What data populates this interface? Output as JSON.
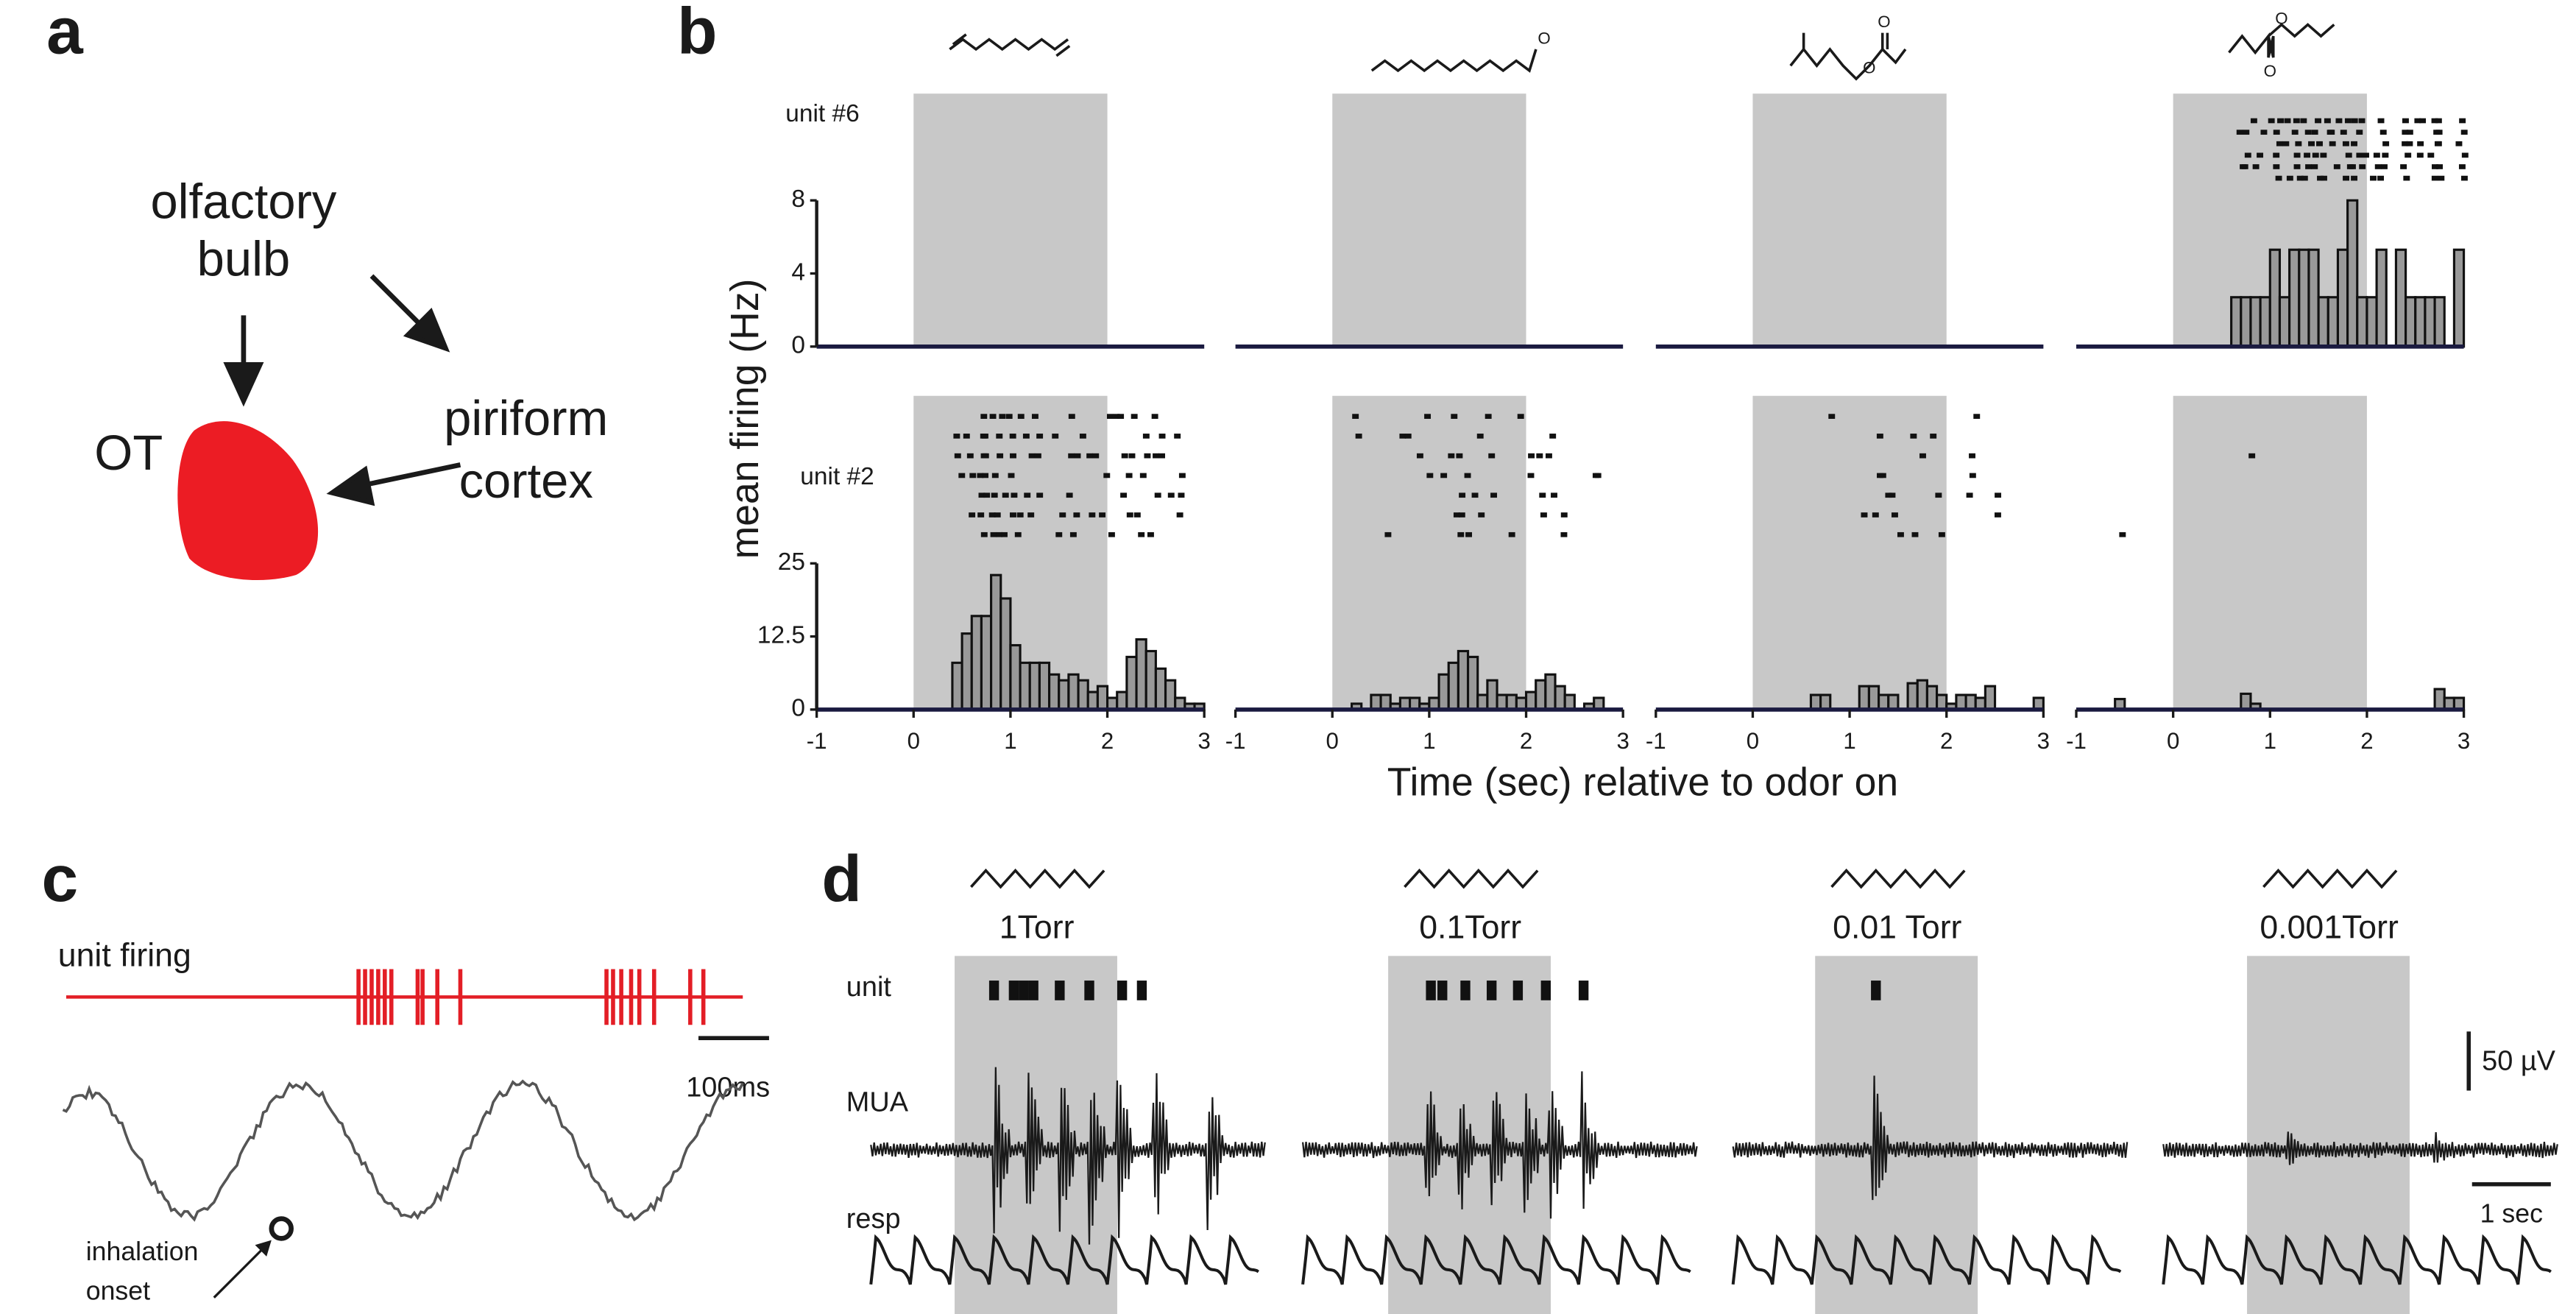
{
  "panel_a": {
    "label": "a",
    "olfactory_bulb": [
      "olfactory",
      "bulb"
    ],
    "piriform_cortex": [
      "piriform",
      "cortex"
    ],
    "ot": "OT"
  },
  "panel_b": {
    "label": "b",
    "ylabel": "mean firing (Hz)",
    "xlabel": "Time (sec) relative to odor on",
    "atom": "O"
  },
  "chart_data": [
    {
      "type": "histogram",
      "unit": "unit #6",
      "color": "#999999",
      "shaded": [
        0,
        2
      ],
      "xlim": [
        -1,
        3
      ],
      "ylim": [
        0,
        8
      ],
      "yticks": [
        0,
        4,
        8
      ],
      "bins": [
        -1,
        -0.9,
        -0.8,
        -0.7,
        -0.6,
        -0.5,
        -0.4,
        -0.3,
        -0.2,
        -0.1,
        0,
        0.1,
        0.2,
        0.3,
        0.4,
        0.5,
        0.6,
        0.7,
        0.8,
        0.9,
        1,
        1.1,
        1.2,
        1.3,
        1.4,
        1.5,
        1.6,
        1.7,
        1.8,
        1.9,
        2,
        2.1,
        2.2,
        2.3,
        2.4,
        2.5,
        2.6,
        2.7,
        2.8,
        2.9,
        3
      ],
      "values": [
        0,
        0,
        0,
        0,
        0,
        0,
        0,
        0,
        0,
        0,
        0,
        0,
        0,
        0,
        0,
        0,
        0,
        0,
        0,
        0,
        0,
        0,
        0,
        0,
        0,
        0,
        0,
        0,
        0,
        0,
        0,
        0,
        0,
        0,
        0,
        0,
        0,
        0,
        0,
        0
      ]
    },
    {
      "type": "histogram",
      "color": "#999999",
      "shaded": [
        0,
        2
      ],
      "xlim": [
        -1,
        3
      ],
      "ylim": [
        0,
        8
      ],
      "bins": [
        -1,
        -0.9,
        -0.8,
        -0.7,
        -0.6,
        -0.5,
        -0.4,
        -0.3,
        -0.2,
        -0.1,
        0,
        0.1,
        0.2,
        0.3,
        0.4,
        0.5,
        0.6,
        0.7,
        0.8,
        0.9,
        1,
        1.1,
        1.2,
        1.3,
        1.4,
        1.5,
        1.6,
        1.7,
        1.8,
        1.9,
        2,
        2.1,
        2.2,
        2.3,
        2.4,
        2.5,
        2.6,
        2.7,
        2.8,
        2.9,
        3
      ],
      "values": [
        0,
        0,
        0,
        0,
        0,
        0,
        0,
        0,
        0,
        0,
        0,
        0,
        0,
        0,
        0,
        0,
        0,
        0,
        0,
        0,
        0,
        0,
        0,
        0,
        0,
        0,
        0,
        0,
        0,
        0,
        0,
        0,
        0,
        0,
        0,
        0,
        0,
        0,
        0,
        0
      ]
    },
    {
      "type": "histogram",
      "color": "#999999",
      "shaded": [
        0,
        2
      ],
      "xlim": [
        -1,
        3
      ],
      "ylim": [
        0,
        8
      ],
      "bins": [
        -1,
        -0.9,
        -0.8,
        -0.7,
        -0.6,
        -0.5,
        -0.4,
        -0.3,
        -0.2,
        -0.1,
        0,
        0.1,
        0.2,
        0.3,
        0.4,
        0.5,
        0.6,
        0.7,
        0.8,
        0.9,
        1,
        1.1,
        1.2,
        1.3,
        1.4,
        1.5,
        1.6,
        1.7,
        1.8,
        1.9,
        2,
        2.1,
        2.2,
        2.3,
        2.4,
        2.5,
        2.6,
        2.7,
        2.8,
        2.9,
        3
      ],
      "values": [
        0,
        0,
        0,
        0,
        0,
        0,
        0,
        0,
        0,
        0,
        0,
        0,
        0,
        0,
        0,
        0,
        0,
        0,
        0,
        0,
        0,
        0,
        0,
        0,
        0,
        0,
        0,
        0,
        0,
        0,
        0,
        0,
        0,
        0,
        0,
        0,
        0,
        0,
        0,
        0
      ]
    },
    {
      "type": "histogram",
      "color": "#999999",
      "shaded": [
        0,
        2
      ],
      "xlim": [
        -1,
        3
      ],
      "ylim": [
        0,
        8
      ],
      "bins": [
        -1,
        -0.9,
        -0.8,
        -0.7,
        -0.6,
        -0.5,
        -0.4,
        -0.3,
        -0.2,
        -0.1,
        0,
        0.1,
        0.2,
        0.3,
        0.4,
        0.5,
        0.6,
        0.7,
        0.8,
        0.9,
        1,
        1.1,
        1.2,
        1.3,
        1.4,
        1.5,
        1.6,
        1.7,
        1.8,
        1.9,
        2,
        2.1,
        2.2,
        2.3,
        2.4,
        2.5,
        2.6,
        2.7,
        2.8,
        2.9,
        3
      ],
      "values": [
        0,
        0,
        0,
        0,
        0,
        0,
        0,
        0,
        0,
        0,
        0,
        0,
        0,
        0,
        0,
        0,
        2.7,
        2.7,
        2.7,
        2.7,
        5.3,
        2.7,
        5.3,
        5.3,
        5.3,
        2.7,
        2.7,
        5.3,
        8,
        2.7,
        2.7,
        5.3,
        0,
        5.3,
        2.7,
        2.7,
        2.7,
        2.7,
        0,
        5.3
      ]
    },
    {
      "type": "histogram",
      "unit": "unit #2",
      "color": "#999999",
      "shaded": [
        0,
        2
      ],
      "xlim": [
        -1,
        3
      ],
      "ylim": [
        0,
        25
      ],
      "yticks": [
        0,
        12.5,
        25
      ],
      "xticks": [
        -1,
        0,
        1,
        2,
        3
      ],
      "bins": [
        -1,
        -0.9,
        -0.8,
        -0.7,
        -0.6,
        -0.5,
        -0.4,
        -0.3,
        -0.2,
        -0.1,
        0,
        0.1,
        0.2,
        0.3,
        0.4,
        0.5,
        0.6,
        0.7,
        0.8,
        0.9,
        1,
        1.1,
        1.2,
        1.3,
        1.4,
        1.5,
        1.6,
        1.7,
        1.8,
        1.9,
        2,
        2.1,
        2.2,
        2.3,
        2.4,
        2.5,
        2.6,
        2.7,
        2.8,
        2.9,
        3
      ],
      "values": [
        0,
        0,
        0,
        0,
        0,
        0,
        0,
        0,
        0,
        0,
        0,
        0,
        0,
        0,
        8,
        13,
        16,
        16,
        23,
        19,
        11,
        8,
        8,
        8,
        6,
        5,
        6,
        5,
        3,
        4,
        2,
        3,
        9,
        12,
        10,
        7,
        5,
        2,
        1,
        1
      ]
    },
    {
      "type": "histogram",
      "color": "#999999",
      "shaded": [
        0,
        2
      ],
      "xlim": [
        -1,
        3
      ],
      "ylim": [
        0,
        25
      ],
      "xticks": [
        -1,
        0,
        1,
        2,
        3
      ],
      "bins": [
        -1,
        -0.9,
        -0.8,
        -0.7,
        -0.6,
        -0.5,
        -0.4,
        -0.3,
        -0.2,
        -0.1,
        0,
        0.1,
        0.2,
        0.3,
        0.4,
        0.5,
        0.6,
        0.7,
        0.8,
        0.9,
        1,
        1.1,
        1.2,
        1.3,
        1.4,
        1.5,
        1.6,
        1.7,
        1.8,
        1.9,
        2,
        2.1,
        2.2,
        2.3,
        2.4,
        2.5,
        2.6,
        2.7,
        2.8,
        2.9,
        3
      ],
      "values": [
        0,
        0,
        0,
        0,
        0,
        0,
        0,
        0,
        0,
        0,
        0,
        0,
        1,
        0,
        2.5,
        2.5,
        1,
        2,
        2,
        1,
        2,
        6,
        8,
        10,
        9,
        2.5,
        5,
        2.5,
        2.5,
        2,
        3,
        5,
        6,
        4,
        2.5,
        0,
        1,
        2,
        0,
        0
      ]
    },
    {
      "type": "histogram",
      "color": "#999999",
      "shaded": [
        0,
        2
      ],
      "xlim": [
        -1,
        3
      ],
      "ylim": [
        0,
        25
      ],
      "xticks": [
        -1,
        0,
        1,
        2,
        3
      ],
      "bins": [
        -1,
        -0.9,
        -0.8,
        -0.7,
        -0.6,
        -0.5,
        -0.4,
        -0.3,
        -0.2,
        -0.1,
        0,
        0.1,
        0.2,
        0.3,
        0.4,
        0.5,
        0.6,
        0.7,
        0.8,
        0.9,
        1,
        1.1,
        1.2,
        1.3,
        1.4,
        1.5,
        1.6,
        1.7,
        1.8,
        1.9,
        2,
        2.1,
        2.2,
        2.3,
        2.4,
        2.5,
        2.6,
        2.7,
        2.8,
        2.9,
        3
      ],
      "values": [
        0,
        0,
        0,
        0,
        0,
        0,
        0,
        0,
        0,
        0,
        0,
        0,
        0,
        0,
        0,
        0,
        2.5,
        2.5,
        0,
        0,
        0,
        4,
        4,
        2.5,
        2.5,
        0,
        4.5,
        5,
        4,
        2.5,
        1,
        2.5,
        2.5,
        2,
        4,
        0,
        0,
        0,
        0,
        2
      ]
    },
    {
      "type": "histogram",
      "color": "#999999",
      "shaded": [
        0,
        2
      ],
      "xlim": [
        -1,
        3
      ],
      "ylim": [
        0,
        25
      ],
      "xticks": [
        -1,
        0,
        1,
        2,
        3
      ],
      "bins": [
        -1,
        -0.9,
        -0.8,
        -0.7,
        -0.6,
        -0.5,
        -0.4,
        -0.3,
        -0.2,
        -0.1,
        0,
        0.1,
        0.2,
        0.3,
        0.4,
        0.5,
        0.6,
        0.7,
        0.8,
        0.9,
        1,
        1.1,
        1.2,
        1.3,
        1.4,
        1.5,
        1.6,
        1.7,
        1.8,
        1.9,
        2,
        2.1,
        2.2,
        2.3,
        2.4,
        2.5,
        2.6,
        2.7,
        2.8,
        2.9,
        3
      ],
      "values": [
        0,
        0,
        0,
        0,
        1.8,
        0,
        0,
        0,
        0,
        0,
        0,
        0,
        0,
        0,
        0,
        0,
        0,
        2.7,
        1,
        0,
        0,
        0,
        0,
        0,
        0,
        0,
        0,
        0,
        0,
        0,
        0,
        0,
        0,
        0,
        0,
        0,
        0,
        3.5,
        2,
        2
      ]
    }
  ],
  "panel_c": {
    "label": "c",
    "trace_label": "unit firing",
    "scale_bar": "100ms",
    "annotation": [
      "inhalation",
      "onset"
    ]
  },
  "panel_d": {
    "label": "d",
    "row_labels": [
      "unit",
      "MUA",
      "resp"
    ],
    "concentrations": [
      "1Torr",
      "0.1Torr",
      "0.01 Torr",
      "0.001Torr"
    ],
    "scale_bars": [
      "50 µV",
      "1 sec"
    ]
  }
}
